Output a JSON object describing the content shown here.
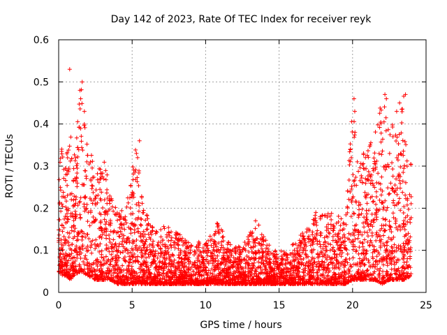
{
  "chart_data": {
    "type": "scatter",
    "title": "Day 142 of 2023, Rate Of TEC Index for receiver reyk",
    "xlabel": "GPS time / hours",
    "ylabel": "ROTI / TECUs",
    "xlim": [
      0,
      25
    ],
    "ylim": [
      0,
      0.6
    ],
    "x_ticks": [
      "0",
      "5",
      "10",
      "15",
      "20",
      "25"
    ],
    "y_ticks": [
      "0",
      "0.1",
      "0.2",
      "0.3",
      "0.4",
      "0.5",
      "0.6"
    ],
    "grid": true,
    "marker": "+",
    "color": "#ff0000",
    "envelope": [
      [
        0.0,
        0.05,
        0.26
      ],
      [
        0.2,
        0.04,
        0.38
      ],
      [
        0.5,
        0.04,
        0.33
      ],
      [
        0.8,
        0.03,
        0.38
      ],
      [
        1.0,
        0.04,
        0.3
      ],
      [
        1.5,
        0.05,
        0.5
      ],
      [
        2.0,
        0.04,
        0.35
      ],
      [
        2.5,
        0.03,
        0.3
      ],
      [
        3.0,
        0.03,
        0.34
      ],
      [
        3.5,
        0.03,
        0.24
      ],
      [
        4.0,
        0.02,
        0.2
      ],
      [
        4.5,
        0.02,
        0.19
      ],
      [
        5.0,
        0.02,
        0.3
      ],
      [
        5.3,
        0.02,
        0.36
      ],
      [
        5.8,
        0.02,
        0.2
      ],
      [
        6.5,
        0.02,
        0.15
      ],
      [
        7.5,
        0.02,
        0.16
      ],
      [
        8.5,
        0.02,
        0.13
      ],
      [
        9.5,
        0.02,
        0.12
      ],
      [
        10.0,
        0.02,
        0.12
      ],
      [
        10.8,
        0.02,
        0.17
      ],
      [
        11.5,
        0.02,
        0.12
      ],
      [
        12.5,
        0.02,
        0.11
      ],
      [
        13.5,
        0.02,
        0.17
      ],
      [
        14.5,
        0.02,
        0.1
      ],
      [
        15.5,
        0.02,
        0.1
      ],
      [
        16.5,
        0.02,
        0.14
      ],
      [
        17.5,
        0.02,
        0.19
      ],
      [
        18.5,
        0.02,
        0.2
      ],
      [
        19.5,
        0.02,
        0.17
      ],
      [
        20.0,
        0.03,
        0.45
      ],
      [
        20.5,
        0.03,
        0.3
      ],
      [
        21.0,
        0.03,
        0.37
      ],
      [
        21.5,
        0.03,
        0.4
      ],
      [
        22.0,
        0.02,
        0.47
      ],
      [
        22.5,
        0.03,
        0.42
      ],
      [
        23.0,
        0.03,
        0.38
      ],
      [
        23.5,
        0.03,
        0.47
      ],
      [
        24.0,
        0.04,
        0.3
      ]
    ],
    "outliers": [
      [
        0.75,
        0.53
      ],
      [
        1.45,
        0.48
      ],
      [
        1.6,
        0.5
      ],
      [
        1.5,
        0.46
      ],
      [
        1.75,
        0.43
      ],
      [
        20.1,
        0.46
      ],
      [
        20.15,
        0.43
      ],
      [
        22.2,
        0.47
      ],
      [
        22.3,
        0.46
      ],
      [
        23.6,
        0.47
      ],
      [
        23.2,
        0.45
      ],
      [
        23.0,
        0.43
      ],
      [
        17.5,
        0.19
      ],
      [
        13.4,
        0.17
      ],
      [
        5.5,
        0.36
      ]
    ]
  }
}
